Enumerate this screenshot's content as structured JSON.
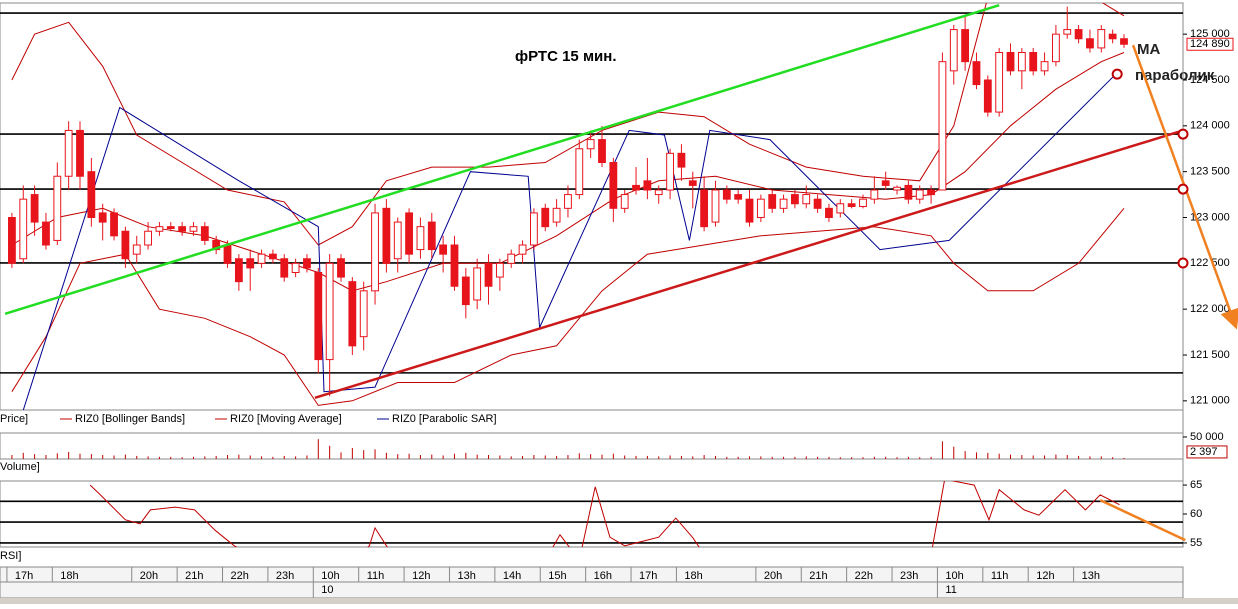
{
  "chart_data": [
    {
      "type": "candlestick",
      "title": "фРТС   15 мин.",
      "annotations": [
        "MA",
        "параболик"
      ],
      "name": "Price]",
      "color": "#e8141c",
      "xlim": [
        -1.05,
        103.2
      ],
      "ylim": [
        120900,
        125340
      ],
      "yticks": [
        {
          "value": 125000,
          "label": "125 000"
        },
        {
          "value": 124500,
          "label": "124 500"
        },
        {
          "value": 124000,
          "label": "124 000"
        },
        {
          "value": 123500,
          "label": "123 500"
        },
        {
          "value": 123000,
          "label": "123 000"
        },
        {
          "value": 122500,
          "label": "122 500"
        },
        {
          "value": 122000,
          "label": "122 000"
        },
        {
          "value": 121500,
          "label": "121 500"
        },
        {
          "value": 121000,
          "label": "121 000"
        }
      ],
      "categories": [
        "17h",
        null,
        null,
        null,
        "18h",
        null,
        null,
        null,
        null,
        null,
        null,
        "20h",
        null,
        null,
        null,
        "21h",
        null,
        null,
        null,
        "22h",
        null,
        null,
        null,
        "23h",
        null,
        null,
        null,
        "10h",
        null,
        null,
        null,
        "11h",
        null,
        null,
        null,
        "12h",
        null,
        null,
        null,
        "13h",
        null,
        null,
        null,
        "14h",
        null,
        null,
        null,
        "15h",
        null,
        null,
        null,
        "16h",
        null,
        null,
        null,
        "17h",
        null,
        null,
        null,
        "18h",
        null,
        null,
        null,
        null,
        null,
        null,
        "20h",
        null,
        null,
        null,
        "21h",
        null,
        null,
        null,
        "22h",
        null,
        null,
        null,
        "23h",
        null,
        null,
        null,
        "10h",
        null,
        null,
        null,
        "11h",
        null,
        null,
        null,
        "12h",
        null,
        null,
        null,
        "13h",
        null,
        null,
        null,
        null
      ],
      "dates": [
        null,
        null,
        null,
        null,
        null,
        null,
        null,
        null,
        null,
        null,
        null,
        null,
        null,
        null,
        null,
        null,
        null,
        null,
        null,
        null,
        null,
        null,
        null,
        null,
        null,
        null,
        null,
        "10",
        null,
        null,
        null,
        null,
        null,
        null,
        null,
        null,
        null,
        null,
        null,
        null,
        null,
        null,
        null,
        null,
        null,
        null,
        null,
        null,
        null,
        null,
        null,
        null,
        null,
        null,
        null,
        null,
        null,
        null,
        null,
        null,
        null,
        null,
        null,
        null,
        null,
        null,
        null,
        null,
        null,
        null,
        null,
        null,
        null,
        null,
        null,
        null,
        null,
        null,
        null,
        null,
        null,
        null,
        "11",
        null,
        null,
        null,
        null,
        null,
        null,
        null,
        null,
        null,
        null,
        null,
        null,
        null,
        null,
        null,
        null
      ],
      "open": [
        123000,
        122550,
        123250,
        122950,
        122750,
        123450,
        123950,
        123500,
        123050,
        123050,
        122850,
        122600,
        122700,
        122850,
        122900,
        122900,
        122850,
        122900,
        122750,
        122700,
        122550,
        122550,
        122500,
        122600,
        122550,
        122400,
        122550,
        122400,
        121450,
        122550,
        122300,
        121700,
        122200,
        123100,
        122550,
        123050,
        122650,
        122950,
        122700,
        122700,
        122350,
        122100,
        122500,
        122350,
        122500,
        122600,
        122700,
        123100,
        122950,
        123100,
        123250,
        123750,
        123850,
        123600,
        123100,
        123350,
        123400,
        123250,
        123300,
        123700,
        123400,
        123300,
        122950,
        123300,
        123250,
        123200,
        123000,
        123250,
        123100,
        123250,
        123150,
        123200,
        123100,
        123050,
        123150,
        123120,
        123200,
        123400,
        123300,
        123350,
        123200,
        123300,
        123300,
        124600,
        125050,
        124700,
        124500,
        124150,
        124800,
        124600,
        124800,
        124600,
        124700,
        125000,
        125050,
        124950,
        124850,
        125000,
        124950
      ],
      "high": [
        123050,
        123350,
        123350,
        123050,
        123600,
        124050,
        124050,
        123650,
        123150,
        123100,
        122900,
        122800,
        122950,
        122950,
        122950,
        122950,
        122950,
        122950,
        122800,
        122750,
        122600,
        122650,
        122650,
        122650,
        122600,
        122550,
        122600,
        122450,
        122600,
        122600,
        122350,
        122300,
        123150,
        123200,
        123000,
        123100,
        123000,
        123050,
        122800,
        122800,
        122450,
        122550,
        122600,
        122550,
        122650,
        122750,
        123100,
        123150,
        123200,
        123350,
        123850,
        123950,
        124000,
        123650,
        123300,
        123550,
        123650,
        123350,
        123750,
        123800,
        123500,
        123450,
        123400,
        123350,
        123300,
        123300,
        123250,
        123300,
        123250,
        123300,
        123350,
        123250,
        123150,
        123200,
        123200,
        123250,
        123450,
        123500,
        123350,
        123400,
        123350,
        123350,
        124800,
        125100,
        125200,
        124800,
        124550,
        124850,
        124900,
        124850,
        124850,
        124800,
        125100,
        125300,
        125100,
        125050,
        125100,
        125050,
        125000
      ],
      "low": [
        122450,
        122500,
        122800,
        122650,
        122700,
        123300,
        123300,
        122900,
        122750,
        122750,
        122450,
        122500,
        122650,
        122800,
        122850,
        122800,
        122800,
        122700,
        122600,
        122450,
        122200,
        122200,
        122450,
        122500,
        122300,
        122350,
        122400,
        121300,
        121050,
        122300,
        121500,
        121550,
        122050,
        122400,
        122400,
        122500,
        122550,
        122550,
        122400,
        122200,
        121900,
        122000,
        122050,
        122200,
        122450,
        122500,
        122650,
        122850,
        122900,
        123000,
        123200,
        123650,
        123550,
        122950,
        123050,
        123250,
        123200,
        123150,
        123200,
        123400,
        123100,
        122850,
        122900,
        123150,
        123150,
        122900,
        122950,
        123050,
        123050,
        123100,
        123100,
        123050,
        122950,
        123000,
        123100,
        123100,
        123150,
        123300,
        123250,
        123150,
        123150,
        123150,
        123300,
        124450,
        124600,
        124400,
        124100,
        124100,
        124550,
        124400,
        124550,
        124550,
        124650,
        124950,
        124900,
        124800,
        124800,
        124900,
        124850
      ],
      "close": [
        122500,
        123200,
        122950,
        122700,
        123450,
        123950,
        123450,
        123000,
        122950,
        122800,
        122550,
        122700,
        122850,
        122900,
        122880,
        122850,
        122900,
        122750,
        122650,
        122500,
        122300,
        122450,
        122600,
        122550,
        122350,
        122500,
        122450,
        121450,
        122500,
        122350,
        121600,
        122200,
        123050,
        122500,
        122950,
        122600,
        122900,
        122650,
        122600,
        122250,
        122050,
        122450,
        122250,
        122500,
        122600,
        122700,
        123050,
        122900,
        123100,
        123250,
        123750,
        123850,
        123600,
        123100,
        123250,
        123300,
        123300,
        123300,
        123700,
        123550,
        123350,
        122900,
        123300,
        123200,
        123200,
        122950,
        123200,
        123100,
        123200,
        123150,
        123250,
        123100,
        123000,
        123150,
        123120,
        123200,
        123300,
        123350,
        123330,
        123200,
        123300,
        123250,
        124700,
        125050,
        124700,
        124450,
        124150,
        124800,
        124600,
        124800,
        124600,
        124700,
        125000,
        125050,
        124950,
        124850,
        125050,
        124950,
        124890
      ],
      "last_price": {
        "value": 124890,
        "label": "124 890"
      },
      "indicators": [
        {
          "name": "RIZ0 [Bollinger Bands]",
          "color": "#c00000",
          "bands": [
            {
              "x": [
                0,
                2,
                5,
                8,
                11,
                15,
                19,
                24,
                27,
                30,
                33,
                37,
                42,
                47,
                52,
                57,
                61,
                65,
                70,
                75,
                80,
                83,
                86,
                90,
                94,
                98
              ],
              "values": [
                124500,
                125000,
                125130,
                124650,
                123900,
                123600,
                123300,
                123170,
                122700,
                122900,
                123400,
                123550,
                123550,
                123600,
                123950,
                124150,
                124100,
                123800,
                123550,
                123450,
                123400,
                124000,
                125400,
                125600,
                125500,
                125200
              ]
            },
            {
              "x": [
                0,
                3,
                6,
                10,
                13,
                17,
                21,
                24,
                27,
                30,
                34,
                39,
                44,
                48,
                52,
                56,
                61,
                66,
                71,
                76,
                81,
                83,
                86,
                90,
                94,
                98
              ],
              "values": [
                121100,
                121700,
                122500,
                122600,
                122000,
                121900,
                121700,
                121500,
                120950,
                121000,
                121200,
                121200,
                121500,
                121600,
                122200,
                122600,
                122700,
                122800,
                122850,
                122900,
                122800,
                122500,
                122200,
                122200,
                122500,
                123100
              ]
            }
          ]
        },
        {
          "name": "RIZ0 [Moving Average]",
          "color": "#c00000",
          "x": [
            0,
            4,
            8,
            12,
            17,
            22,
            27,
            30,
            33,
            38,
            43,
            48,
            53,
            57,
            62,
            67,
            72,
            77,
            81,
            84,
            88,
            92,
            96,
            98
          ],
          "values": [
            122700,
            123000,
            123100,
            122900,
            122800,
            122600,
            122400,
            122200,
            122300,
            122500,
            122500,
            122800,
            123200,
            123400,
            123450,
            123300,
            123250,
            123200,
            123250,
            123500,
            124000,
            124400,
            124700,
            124800
          ]
        },
        {
          "name": "RIZ0 [Parabolic SAR]",
          "color": "#000090",
          "x": [
            1,
            9.5,
            20,
            27,
            27.5,
            32,
            40.4,
            45.5,
            46.5,
            54.4,
            57.5,
            59.7,
            61.5,
            66.8,
            76.5,
            82.6,
            97.4
          ],
          "values": [
            120900,
            124200,
            123400,
            122900,
            121100,
            121150,
            123500,
            123450,
            121800,
            123950,
            123900,
            122750,
            123950,
            123850,
            122650,
            122750,
            124580
          ]
        }
      ],
      "levels": [
        125230,
        123910,
        123310,
        122504,
        121305
      ],
      "trend_lines": [
        {
          "color": "#22dd22",
          "x": [
            -0.6,
            87
          ],
          "values": [
            121950,
            125316
          ]
        },
        {
          "color": "#cc1a1a",
          "x": [
            26.7,
            103.3
          ],
          "values": [
            121033,
            123954
          ]
        }
      ],
      "arrow": {
        "color": "#f08020",
        "x": [
          98.8,
          107.8
        ],
        "values": [
          124880,
          121830
        ]
      },
      "markers": {
        "color": "#c00000",
        "x": [
          97.4,
          103.2,
          103.2,
          103.2
        ],
        "values": [
          124564,
          123910,
          123310,
          122504
        ]
      }
    },
    {
      "type": "bar",
      "name": "Volume]",
      "color": "#c00000",
      "ylim": [
        0,
        59000
      ],
      "yticks": [
        {
          "value": 50000,
          "label": "50 000"
        }
      ],
      "values": [
        9000,
        14000,
        11000,
        9000,
        13000,
        16000,
        12000,
        11000,
        9000,
        8000,
        10000,
        7000,
        6000,
        5000,
        5000,
        4000,
        5000,
        6000,
        7000,
        9000,
        10000,
        8000,
        6000,
        5000,
        7000,
        6000,
        8000,
        45000,
        30000,
        15000,
        25000,
        20000,
        22000,
        14000,
        11000,
        12000,
        9000,
        10000,
        8000,
        12000,
        14000,
        10000,
        9000,
        8000,
        6000,
        7000,
        9000,
        8000,
        7000,
        9000,
        13000,
        11000,
        10000,
        12000,
        8000,
        7000,
        7000,
        6000,
        8000,
        7000,
        6000,
        9000,
        7000,
        5000,
        5000,
        6000,
        6000,
        5000,
        5000,
        5000,
        6000,
        5000,
        5000,
        4000,
        4000,
        4000,
        5000,
        5000,
        4000,
        5000,
        4000,
        5000,
        40000,
        28000,
        18000,
        15000,
        14000,
        12000,
        10000,
        9000,
        8000,
        8000,
        10000,
        9000,
        7000,
        6000,
        6000,
        4000,
        2397
      ],
      "last_value": {
        "value": 2397,
        "label": "2 397"
      }
    },
    {
      "type": "line",
      "name": "RSI]",
      "color": "#c00000",
      "ylim": [
        54.3,
        65.7
      ],
      "yticks": [
        65,
        60,
        55
      ],
      "levels": [
        62.2,
        58.6,
        55
      ],
      "x": [
        6.9,
        7.8,
        10,
        11.3,
        12.2,
        14.4,
        16.1,
        17.9,
        19.6,
        21,
        30,
        31.5,
        32,
        33,
        34,
        47,
        48.3,
        50,
        51.4,
        52.7,
        54,
        57,
        58.5,
        60,
        61,
        81,
        82.2,
        84.8,
        86.1,
        87,
        89.2,
        90.5,
        92.8,
        94.6,
        95.9,
        97.6
      ],
      "values": [
        65,
        63.3,
        59,
        58.3,
        60.7,
        61.2,
        60.7,
        57.2,
        54.5,
        53,
        52,
        54.5,
        57.6,
        54.5,
        52,
        52,
        56.4,
        52,
        64.7,
        56,
        54.5,
        56,
        59.3,
        55.9,
        53,
        53,
        66,
        65,
        59,
        64.2,
        60.7,
        59.8,
        64.2,
        60.7,
        63.3,
        61.6
      ],
      "trend_line": {
        "color": "#f08020",
        "x": [
          95.9,
          103.4
        ],
        "values": [
          62.4,
          55.5
        ]
      }
    }
  ]
}
